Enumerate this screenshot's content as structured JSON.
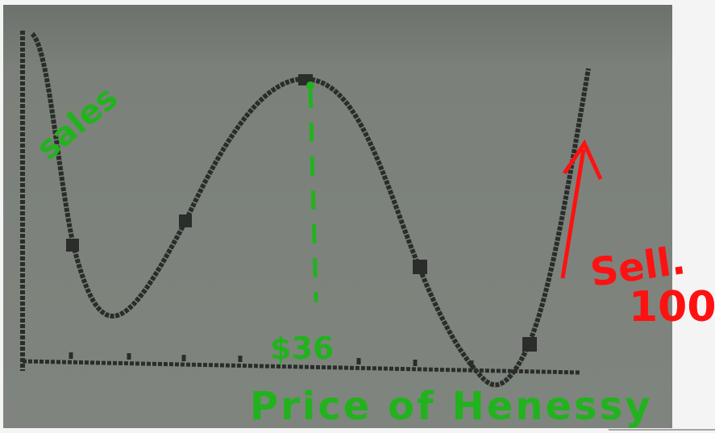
{
  "annotations": {
    "y_label": "sales",
    "x_mark": "$36",
    "x_label": "Price of Henessy",
    "note": "Sell.",
    "note_value": "100"
  }
}
